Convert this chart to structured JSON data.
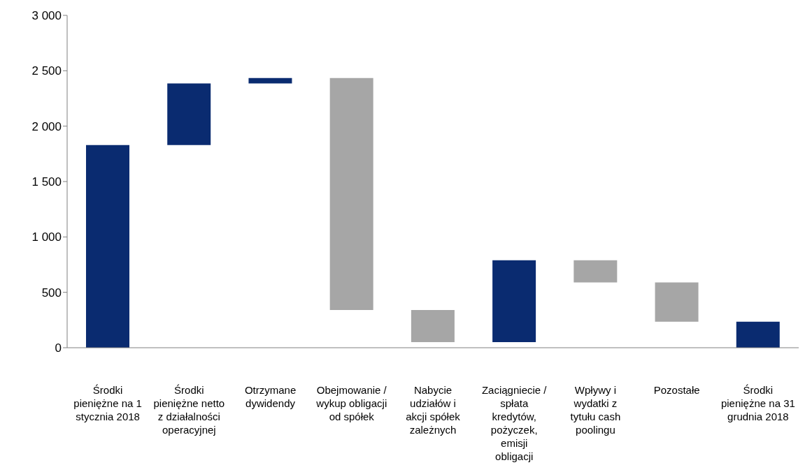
{
  "chart_data": {
    "type": "bar",
    "categories": [
      "Środki pieniężne na 1 stycznia 2018",
      "Środki pieniężne netto z działalności operacyjnej",
      "Otrzymane dywidendy",
      "Obejmowanie / wykup obligacji od spółek",
      "Nabycie udziałów i akcji spółek zależnych",
      "Zaciągniecie / spłata kredytów, pożyczek, emisji obligacji",
      "Wpływy i wydatki z tytułu cash poolingu",
      "Pozostałe",
      "Środki pieniężne na 31 grudnia 2018"
    ],
    "base": [
      0,
      1830,
      2385,
      2435,
      340,
      50,
      790,
      590,
      0
    ],
    "values": [
      1830,
      555,
      50,
      -2095,
      -290,
      740,
      -200,
      -355,
      235
    ],
    "colors": [
      "#0a2b70",
      "#0a2b70",
      "#0a2b70",
      "#a6a6a6",
      "#a6a6a6",
      "#0a2b70",
      "#a6a6a6",
      "#a6a6a6",
      "#0a2b70"
    ],
    "ylim": [
      0,
      3000
    ],
    "yticks": [
      {
        "value": 0,
        "label": "0"
      },
      {
        "value": 500,
        "label": "500"
      },
      {
        "value": 1000,
        "label": "1 000"
      },
      {
        "value": 1500,
        "label": "1 500"
      },
      {
        "value": 2000,
        "label": "2 000"
      },
      {
        "value": 2500,
        "label": "2 500"
      },
      {
        "value": 3000,
        "label": "3 000"
      }
    ],
    "grid": false,
    "legend": false
  }
}
